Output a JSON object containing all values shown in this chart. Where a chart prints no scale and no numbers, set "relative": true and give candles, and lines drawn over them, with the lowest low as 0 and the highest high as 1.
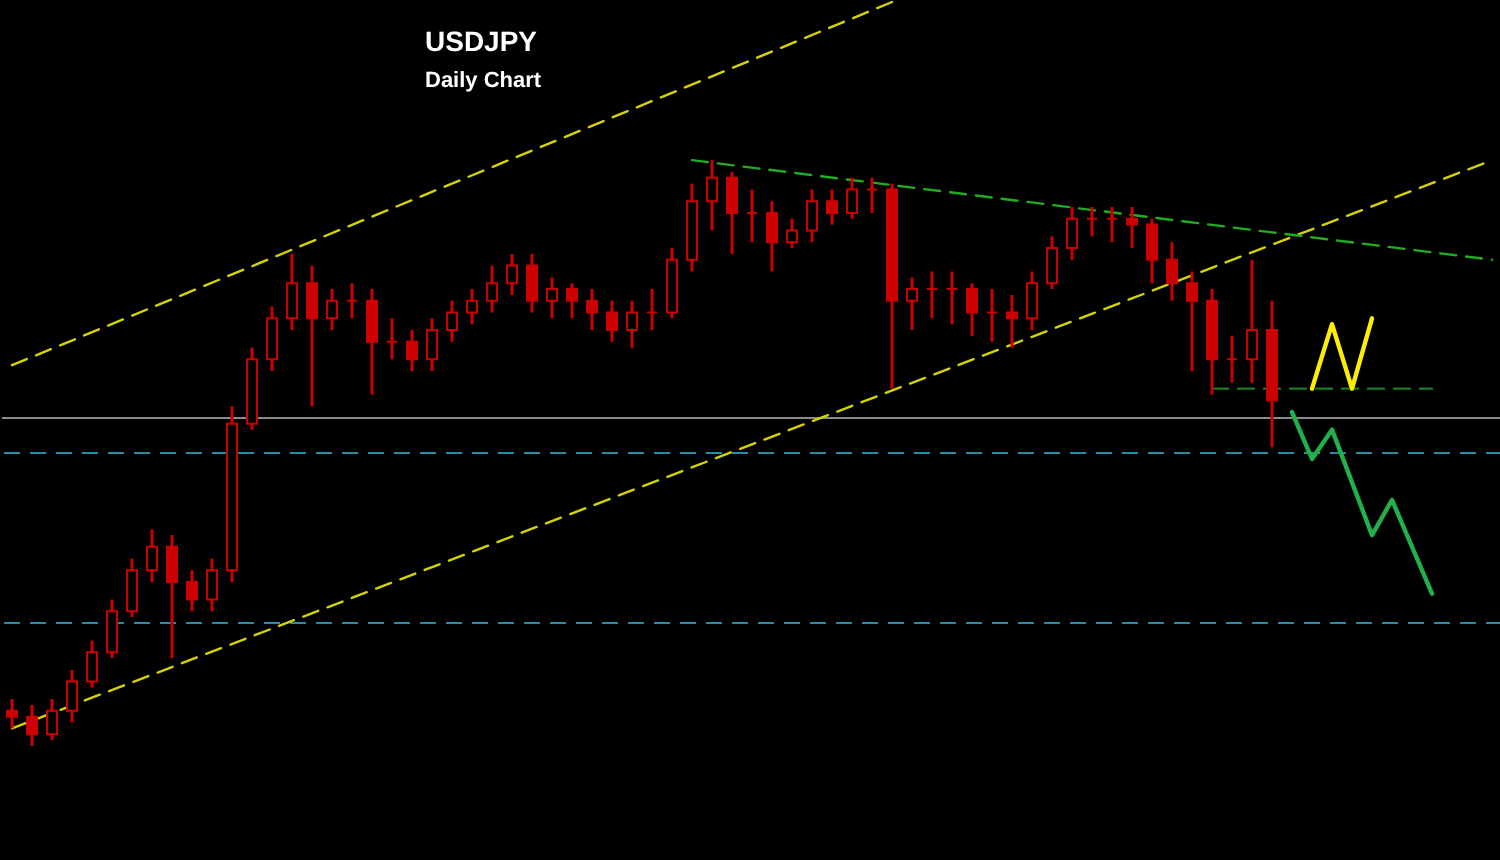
{
  "chart_data": {
    "type": "candlestick",
    "title": "USDJPY",
    "subtitle": "Daily Chart",
    "relative": true,
    "color": "#cc0000",
    "tick_labels": false,
    "categories": [
      null,
      null,
      null,
      null,
      null,
      null,
      null,
      null,
      null,
      null,
      null,
      null,
      null,
      null,
      null,
      null,
      null,
      null,
      null,
      null,
      null,
      null,
      null,
      null,
      null,
      null,
      null,
      null,
      null,
      null,
      null,
      null,
      null,
      null,
      null,
      null,
      null,
      null,
      null,
      null,
      null,
      null,
      null,
      null,
      null,
      null,
      null,
      null,
      null,
      null,
      null,
      null,
      null,
      null,
      null,
      null,
      null,
      null,
      null,
      null,
      null,
      null,
      null,
      null,
      null,
      null,
      null,
      null,
      null,
      null,
      null,
      null,
      null,
      null,
      null
    ],
    "ohlc": [
      [
        0.06,
        0.08,
        0.03,
        0.05
      ],
      [
        0.05,
        0.07,
        0,
        0.02
      ],
      [
        0.02,
        0.08,
        0.01,
        0.06
      ],
      [
        0.06,
        0.13,
        0.04,
        0.11
      ],
      [
        0.11,
        0.18,
        0.1,
        0.16
      ],
      [
        0.16,
        0.25,
        0.15,
        0.23
      ],
      [
        0.23,
        0.32,
        0.22,
        0.3
      ],
      [
        0.3,
        0.37,
        0.28,
        0.34
      ],
      [
        0.34,
        0.36,
        0.15,
        0.28
      ],
      [
        0.28,
        0.3,
        0.23,
        0.25
      ],
      [
        0.25,
        0.32,
        0.23,
        0.3
      ],
      [
        0.3,
        0.58,
        0.28,
        0.55
      ],
      [
        0.55,
        0.68,
        0.54,
        0.66
      ],
      [
        0.66,
        0.75,
        0.64,
        0.73
      ],
      [
        0.73,
        0.84,
        0.71,
        0.79
      ],
      [
        0.79,
        0.82,
        0.58,
        0.73
      ],
      [
        0.73,
        0.78,
        0.71,
        0.76
      ],
      [
        0.76,
        0.79,
        0.73,
        0.76
      ],
      [
        0.76,
        0.78,
        0.6,
        0.69
      ],
      [
        0.69,
        0.73,
        0.66,
        0.69
      ],
      [
        0.69,
        0.71,
        0.64,
        0.66
      ],
      [
        0.66,
        0.73,
        0.64,
        0.71
      ],
      [
        0.71,
        0.76,
        0.69,
        0.74
      ],
      [
        0.74,
        0.78,
        0.72,
        0.76
      ],
      [
        0.76,
        0.82,
        0.74,
        0.79
      ],
      [
        0.79,
        0.84,
        0.77,
        0.82
      ],
      [
        0.82,
        0.84,
        0.74,
        0.76
      ],
      [
        0.76,
        0.8,
        0.73,
        0.78
      ],
      [
        0.78,
        0.79,
        0.73,
        0.76
      ],
      [
        0.76,
        0.78,
        0.71,
        0.74
      ],
      [
        0.74,
        0.76,
        0.69,
        0.71
      ],
      [
        0.71,
        0.76,
        0.68,
        0.74
      ],
      [
        0.74,
        0.78,
        0.71,
        0.74
      ],
      [
        0.74,
        0.85,
        0.73,
        0.83
      ],
      [
        0.83,
        0.96,
        0.81,
        0.93
      ],
      [
        0.93,
        1,
        0.88,
        0.97
      ],
      [
        0.97,
        0.98,
        0.84,
        0.91
      ],
      [
        0.91,
        0.95,
        0.86,
        0.91
      ],
      [
        0.91,
        0.93,
        0.81,
        0.86
      ],
      [
        0.86,
        0.9,
        0.85,
        0.88
      ],
      [
        0.88,
        0.95,
        0.86,
        0.93
      ],
      [
        0.93,
        0.95,
        0.89,
        0.91
      ],
      [
        0.91,
        0.97,
        0.9,
        0.95
      ],
      [
        0.95,
        0.97,
        0.91,
        0.95
      ],
      [
        0.95,
        0.96,
        0.61,
        0.76
      ],
      [
        0.76,
        0.8,
        0.71,
        0.78
      ],
      [
        0.78,
        0.81,
        0.73,
        0.78
      ],
      [
        0.78,
        0.81,
        0.72,
        0.78
      ],
      [
        0.78,
        0.79,
        0.7,
        0.74
      ],
      [
        0.74,
        0.78,
        0.69,
        0.74
      ],
      [
        0.74,
        0.77,
        0.68,
        0.73
      ],
      [
        0.73,
        0.81,
        0.71,
        0.79
      ],
      [
        0.79,
        0.87,
        0.78,
        0.85
      ],
      [
        0.85,
        0.92,
        0.83,
        0.9
      ],
      [
        0.9,
        0.92,
        0.87,
        0.9
      ],
      [
        0.9,
        0.92,
        0.86,
        0.9
      ],
      [
        0.9,
        0.92,
        0.85,
        0.89
      ],
      [
        0.89,
        0.9,
        0.79,
        0.83
      ],
      [
        0.83,
        0.86,
        0.76,
        0.79
      ],
      [
        0.79,
        0.81,
        0.64,
        0.76
      ],
      [
        0.76,
        0.78,
        0.6,
        0.66
      ],
      [
        0.66,
        0.7,
        0.62,
        0.66
      ],
      [
        0.66,
        0.83,
        0.62,
        0.71
      ],
      [
        0.71,
        0.76,
        0.51,
        0.59
      ],
      null,
      null,
      null,
      null,
      null,
      null,
      null,
      null,
      null,
      null,
      null
    ],
    "series": [
      {
        "type": "line",
        "values": [
          0.65,
          null,
          null,
          null,
          null,
          null,
          null,
          null,
          null,
          null,
          null,
          null,
          null,
          null,
          null,
          null,
          null,
          null,
          null,
          null,
          null,
          null,
          null,
          null,
          null,
          null,
          null,
          null,
          null,
          null,
          null,
          null,
          null,
          null,
          null,
          null,
          null,
          null,
          null,
          null,
          null,
          null,
          null,
          null,
          1.27,
          null,
          null,
          null,
          null,
          null,
          null,
          null,
          null,
          null,
          null,
          null,
          null,
          null,
          null,
          null,
          null,
          null,
          null,
          null,
          null,
          null,
          null,
          null,
          null,
          null,
          null,
          null,
          null,
          null,
          null
        ],
        "color": "#d4d400",
        "line_style": "dashed"
      },
      {
        "type": "line",
        "values": [
          0.03,
          null,
          null,
          null,
          null,
          null,
          null,
          null,
          null,
          null,
          null,
          null,
          null,
          null,
          null,
          null,
          null,
          null,
          null,
          null,
          null,
          null,
          null,
          null,
          null,
          null,
          null,
          null,
          null,
          null,
          null,
          null,
          null,
          null,
          null,
          null,
          null,
          null,
          null,
          null,
          null,
          null,
          null,
          null,
          null,
          null,
          null,
          null,
          null,
          null,
          null,
          null,
          null,
          null,
          null,
          null,
          null,
          null,
          null,
          null,
          null,
          null,
          null,
          null,
          null,
          null,
          null,
          null,
          null,
          null,
          null,
          null,
          null,
          null,
          1.0
        ],
        "color": "#d4d400",
        "line_style": "dashed"
      },
      {
        "type": "line",
        "values": [
          null,
          null,
          null,
          null,
          null,
          null,
          null,
          null,
          null,
          null,
          null,
          null,
          null,
          null,
          null,
          null,
          null,
          null,
          null,
          null,
          null,
          null,
          null,
          null,
          null,
          null,
          null,
          null,
          null,
          null,
          null,
          null,
          null,
          null,
          1.0,
          null,
          null,
          null,
          null,
          null,
          null,
          null,
          null,
          null,
          null,
          null,
          null,
          null,
          null,
          null,
          null,
          null,
          null,
          null,
          null,
          null,
          null,
          null,
          null,
          null,
          null,
          null,
          null,
          null,
          null,
          null,
          null,
          null,
          null,
          null,
          null,
          null,
          null,
          null,
          0.83
        ],
        "color": "#22aa22",
        "line_style": "dashed"
      },
      {
        "type": "line",
        "values": [
          null,
          null,
          null,
          null,
          null,
          null,
          null,
          null,
          null,
          null,
          null,
          null,
          null,
          null,
          null,
          null,
          null,
          null,
          null,
          null,
          null,
          null,
          null,
          null,
          null,
          null,
          null,
          null,
          null,
          null,
          null,
          null,
          null,
          null,
          null,
          null,
          null,
          null,
          null,
          null,
          null,
          null,
          null,
          null,
          null,
          null,
          null,
          null,
          null,
          null,
          null,
          null,
          null,
          null,
          null,
          null,
          null,
          null,
          null,
          null,
          0.61,
          null,
          null,
          null,
          null,
          null,
          null,
          null,
          null,
          null,
          null,
          0.61,
          null,
          null,
          null
        ],
        "color": "#1e7a1e",
        "line_style": "dashed"
      },
      {
        "type": "line",
        "values": [
          null,
          null,
          null,
          null,
          null,
          null,
          null,
          null,
          null,
          null,
          null,
          null,
          null,
          null,
          null,
          null,
          null,
          null,
          null,
          null,
          null,
          null,
          null,
          null,
          null,
          null,
          null,
          null,
          null,
          null,
          null,
          null,
          null,
          null,
          null,
          null,
          null,
          null,
          null,
          null,
          null,
          null,
          null,
          null,
          null,
          null,
          null,
          null,
          null,
          null,
          null,
          null,
          null,
          null,
          null,
          null,
          null,
          null,
          null,
          null,
          null,
          null,
          null,
          null,
          null,
          0.61,
          0.72,
          0.61,
          0.73,
          null,
          null,
          null,
          null,
          null,
          null
        ],
        "color": "#ffee00",
        "line_style": "solid"
      },
      {
        "type": "line",
        "values": [
          null,
          null,
          null,
          null,
          null,
          null,
          null,
          null,
          null,
          null,
          null,
          null,
          null,
          null,
          null,
          null,
          null,
          null,
          null,
          null,
          null,
          null,
          null,
          null,
          null,
          null,
          null,
          null,
          null,
          null,
          null,
          null,
          null,
          null,
          null,
          null,
          null,
          null,
          null,
          null,
          null,
          null,
          null,
          null,
          null,
          null,
          null,
          null,
          null,
          null,
          null,
          null,
          null,
          null,
          null,
          null,
          null,
          null,
          null,
          null,
          null,
          null,
          null,
          null,
          0.57,
          0.49,
          0.54,
          null,
          0.36,
          0.42,
          null,
          0.26,
          null,
          null,
          null
        ],
        "color": "#22b04a",
        "line_style": "solid"
      }
    ],
    "ref_lines": [
      {
        "axis": "y",
        "value": 0.56,
        "color": "#8a8a8a",
        "line_style": "solid"
      },
      {
        "axis": "y",
        "value": 0.5,
        "color": "#2a8aa8",
        "line_style": "dashed"
      },
      {
        "axis": "y",
        "value": 0.21,
        "color": "#2a8aa8",
        "line_style": "dashed"
      }
    ]
  }
}
